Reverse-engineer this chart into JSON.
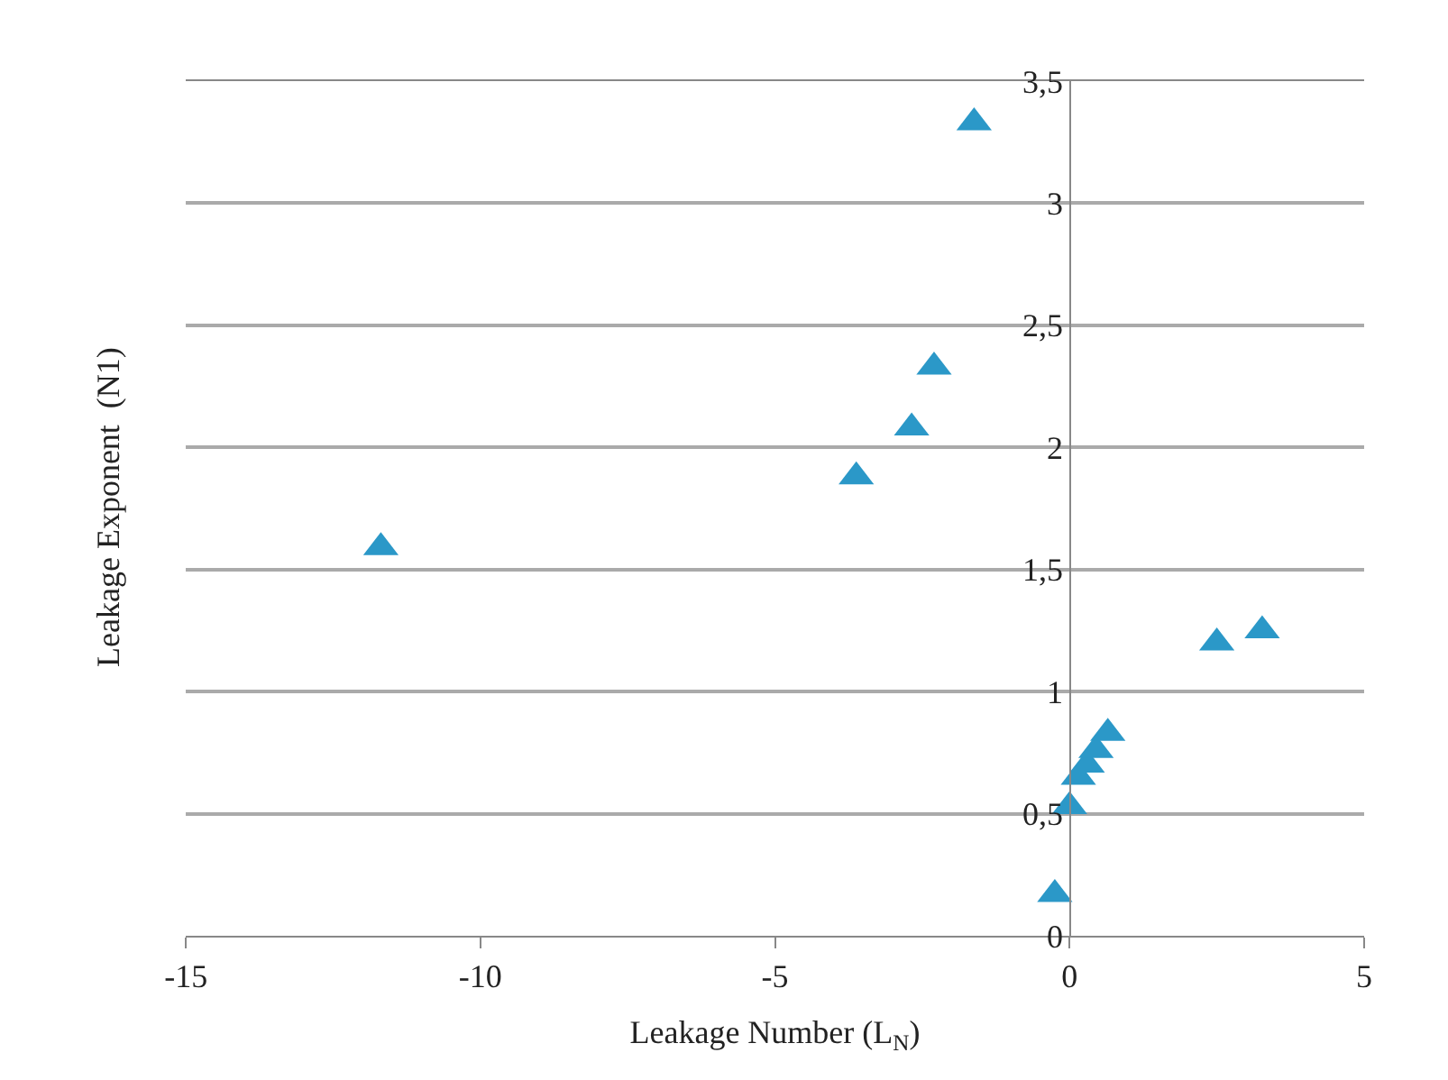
{
  "chart_data": {
    "type": "scatter",
    "xlabel": "Leakage Number (L$_{N}$)",
    "ylabel": "Leakage Exponent  (N1)",
    "x": [
      -1.62,
      -2.3,
      -2.68,
      -3.62,
      -11.69,
      2.5,
      3.27,
      -0.25,
      0.0,
      0.15,
      0.3,
      0.45,
      0.65
    ],
    "series": [
      {
        "color": "#2b98c8",
        "values": [
          3.33,
          2.33,
          2.08,
          1.88,
          1.59,
          1.2,
          1.25,
          0.17,
          0.53,
          0.65,
          0.7,
          0.76,
          0.83
        ]
      }
    ],
    "marker": "triangle",
    "xlim": [
      -15,
      5
    ],
    "xticks": [
      -15,
      -10,
      -5,
      0,
      5
    ],
    "ylim": [
      0,
      3.5
    ],
    "yticks": [
      0,
      {
        "value": 0.5,
        "label": "0,5"
      },
      1,
      {
        "value": 1.5,
        "label": "1,5"
      },
      2,
      {
        "value": 2.5,
        "label": "2,5"
      },
      3,
      {
        "value": 3.5,
        "label": "3,5"
      }
    ],
    "grid": "y"
  }
}
